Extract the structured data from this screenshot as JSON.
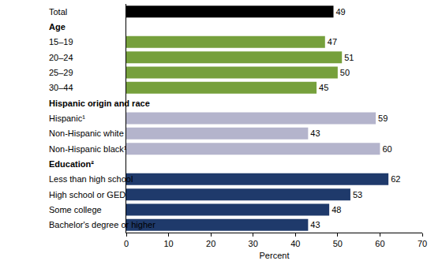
{
  "chart_data": {
    "type": "bar",
    "orientation": "horizontal",
    "categories": [
      "Total",
      "Age",
      "15–19",
      "20–24",
      "25–29",
      "30–44",
      "Hispanic origin and race",
      "Hispanic¹",
      "Non-Hispanic white",
      "Non-Hispanic black¹",
      "Education²",
      "Less than high school",
      "High school or GED",
      "Some college",
      "Bachelor's degree or higher"
    ],
    "values": [
      49,
      null,
      47,
      51,
      50,
      45,
      null,
      59,
      43,
      60,
      null,
      62,
      53,
      48,
      43
    ],
    "colors": [
      "#000000",
      null,
      "#76a03c",
      "#76a03c",
      "#76a03c",
      "#76a03c",
      null,
      "#b4b4cc",
      "#b4b4cc",
      "#b4b4cc",
      null,
      "#1f3a6b",
      "#1f3a6b",
      "#1f3a6b",
      "#1f3a6b"
    ],
    "x_label": "Percent",
    "xlim": [
      0,
      70
    ],
    "xticks": [
      0,
      10,
      20,
      30,
      40,
      50,
      60,
      70
    ],
    "data_labels": true,
    "grid": false
  }
}
